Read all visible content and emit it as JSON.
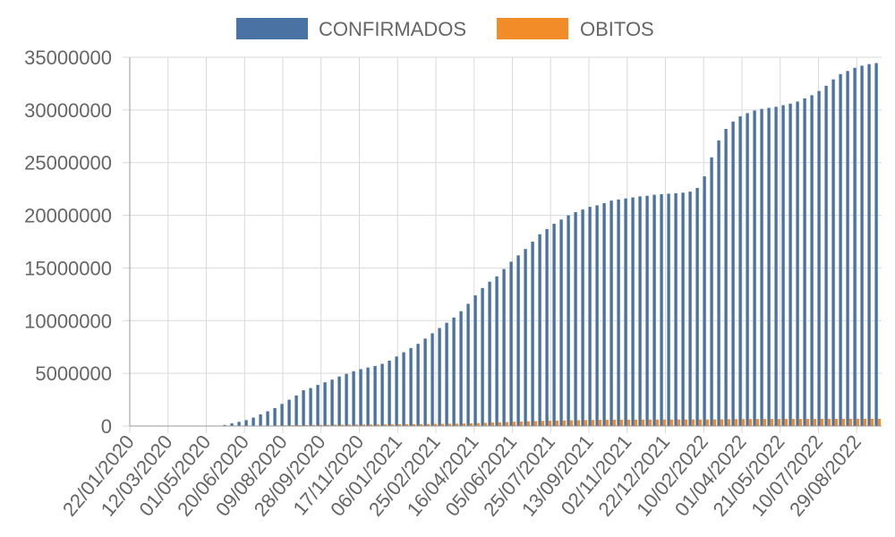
{
  "chart_data": {
    "type": "bar",
    "legend_placement": "top",
    "grid": true,
    "ylim": [
      0,
      35000000
    ],
    "yticks": [
      "0",
      "5000000",
      "10000000",
      "15000000",
      "20000000",
      "25000000",
      "30000000",
      "35000000"
    ],
    "xtick_labels": [
      "22/01/2020",
      "12/03/2020",
      "01/05/2020",
      "20/06/2020",
      "09/08/2020",
      "28/09/2020",
      "17/11/2020",
      "06/01/2021",
      "25/02/2021",
      "16/04/2021",
      "05/06/2021",
      "25/07/2021",
      "13/09/2021",
      "02/11/2021",
      "22/12/2021",
      "10/02/2022",
      "01/04/2022",
      "21/05/2022",
      "10/07/2022",
      "29/08/2022"
    ],
    "categories_note": "weekly bins from 22/01/2020 to 29/08/2022",
    "series": [
      {
        "name": "CONFIRMADOS",
        "color": "#4a73a4",
        "values": [
          0,
          0,
          0,
          0,
          0,
          0,
          0,
          0,
          0,
          0,
          0,
          0,
          0,
          100000,
          250000,
          400000,
          560000,
          800000,
          1100000,
          1400000,
          1700000,
          2100000,
          2500000,
          2900000,
          3400000,
          3600000,
          3900000,
          4150000,
          4400000,
          4700000,
          4950000,
          5200000,
          5400000,
          5550000,
          5700000,
          5900000,
          6200000,
          6600000,
          7000000,
          7400000,
          7800000,
          8300000,
          8800000,
          9300000,
          9800000,
          10300000,
          10900000,
          11600000,
          12400000,
          13100000,
          13700000,
          14200000,
          14900000,
          15600000,
          16200000,
          16800000,
          17500000,
          18200000,
          18700000,
          19200000,
          19600000,
          20000000,
          20300000,
          20550000,
          20800000,
          20950000,
          21150000,
          21400000,
          21500000,
          21600000,
          21700000,
          21800000,
          21850000,
          21950000,
          22000000,
          22050000,
          22100000,
          22150000,
          22250000,
          22600000,
          23700000,
          25500000,
          27100000,
          28200000,
          28900000,
          29400000,
          29700000,
          29950000,
          30100000,
          30200000,
          30300000,
          30450000,
          30600000,
          30800000,
          31100000,
          31400000,
          31800000,
          32300000,
          32900000,
          33400000,
          33700000,
          34000000,
          34200000,
          34350000,
          34450000
        ]
      },
      {
        "name": "OBITOS",
        "color": "#f28c28",
        "values": [
          0,
          0,
          0,
          0,
          0,
          0,
          0,
          0,
          0,
          0,
          0,
          0,
          0,
          5000,
          11000,
          17000,
          23000,
          31000,
          41000,
          50000,
          60000,
          70000,
          80000,
          89000,
          97000,
          104000,
          111000,
          118000,
          124000,
          130000,
          136000,
          140000,
          144000,
          148000,
          152000,
          157000,
          162000,
          167000,
          172000,
          178000,
          185000,
          192000,
          200000,
          209000,
          219000,
          230000,
          243000,
          260000,
          280000,
          305000,
          330000,
          355000,
          380000,
          405000,
          425000,
          445000,
          465000,
          485000,
          500000,
          515000,
          530000,
          545000,
          555000,
          565000,
          575000,
          585000,
          590000,
          595000,
          600000,
          604000,
          607000,
          610000,
          612000,
          615000,
          617000,
          618000,
          619000,
          620000,
          621000,
          622000,
          625000,
          630000,
          640000,
          650000,
          656000,
          660000,
          662000,
          663000,
          664000,
          665000,
          666000,
          667000,
          669000,
          671000,
          673000,
          675000,
          677000,
          680000,
          683000,
          686000,
          688000,
          690000,
          692000,
          694000,
          696000
        ]
      }
    ]
  }
}
